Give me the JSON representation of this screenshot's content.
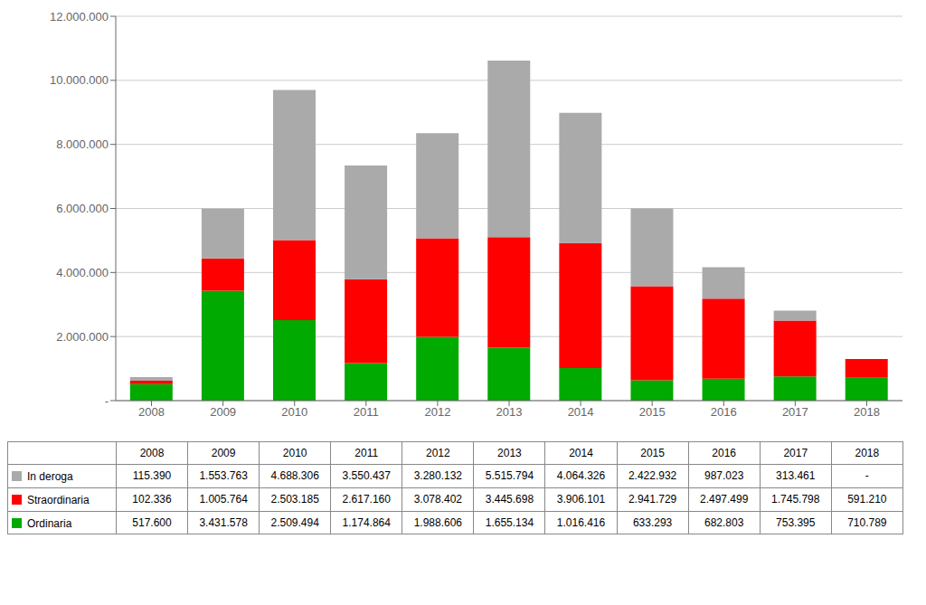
{
  "chart_data": {
    "type": "bar",
    "stacked": true,
    "grid": true,
    "categories": [
      "2008",
      "2009",
      "2010",
      "2011",
      "2012",
      "2013",
      "2014",
      "2015",
      "2016",
      "2017",
      "2018"
    ],
    "series": [
      {
        "name": "Ordinaria",
        "color": "#00aa00",
        "values": [
          517600,
          3431578,
          2509494,
          1174864,
          1988606,
          1655134,
          1016416,
          633293,
          682803,
          753395,
          710789
        ],
        "value_labels": [
          "517.600",
          "3.431.578",
          "2.509.494",
          "1.174.864",
          "1.988.606",
          "1.655.134",
          "1.016.416",
          "633.293",
          "682.803",
          "753.395",
          "710.789"
        ]
      },
      {
        "name": "Straordinaria",
        "color": "#ff0000",
        "values": [
          102336,
          1005764,
          2503185,
          2617160,
          3078402,
          3445698,
          3906101,
          2941729,
          2497499,
          1745798,
          591210
        ],
        "value_labels": [
          "102.336",
          "1.005.764",
          "2.503.185",
          "2.617.160",
          "3.078.402",
          "3.445.698",
          "3.906.101",
          "2.941.729",
          "2.497.499",
          "1.745.798",
          "591.210"
        ]
      },
      {
        "name": "In deroga",
        "color": "#aaaaaa",
        "values": [
          115390,
          1553763,
          4688306,
          3550437,
          3280132,
          5515794,
          4064326,
          2422932,
          987023,
          313461,
          0
        ],
        "value_labels": [
          "115.390",
          "1.553.763",
          "4.688.306",
          "3.550.437",
          "3.280.132",
          "5.515.794",
          "4.064.326",
          "2.422.932",
          "987.023",
          "313.461",
          "-"
        ]
      }
    ],
    "ylim": [
      0,
      12000000
    ],
    "yticks": [
      {
        "value": 0,
        "label": "-"
      },
      {
        "value": 2000000,
        "label": "2.000.000"
      },
      {
        "value": 4000000,
        "label": "4.000.000"
      },
      {
        "value": 6000000,
        "label": "6.000.000"
      },
      {
        "value": 8000000,
        "label": "8.000.000"
      },
      {
        "value": 10000000,
        "label": "10.000.000"
      },
      {
        "value": 12000000,
        "label": "12.000.000"
      }
    ]
  }
}
